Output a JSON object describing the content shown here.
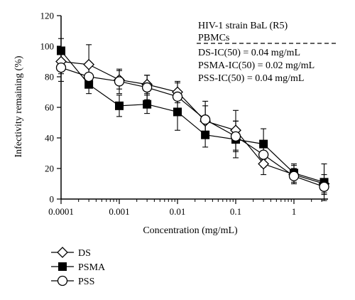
{
  "chart_data": {
    "type": "line",
    "xlabel": "Concentration (mg/mL)",
    "ylabel": "Infectivity remaining (%)",
    "x_scale": "log",
    "xlim": [
      0.0001,
      5
    ],
    "ylim": [
      0,
      120
    ],
    "x_ticks": [
      0.0001,
      0.001,
      0.01,
      0.1,
      1
    ],
    "x_tick_labels": [
      "0.0001",
      "0.001",
      "0.01",
      "0.1",
      "1"
    ],
    "y_ticks": [
      0,
      20,
      40,
      60,
      80,
      100,
      120
    ],
    "y_tick_labels": [
      "0",
      "20",
      "40",
      "60",
      "80",
      "100",
      "120"
    ],
    "grid": false,
    "legend_position": "bottom-left",
    "x": [
      0.0001,
      0.0003,
      0.001,
      0.003,
      0.01,
      0.03,
      0.1,
      0.3,
      1,
      3.3
    ],
    "series": [
      {
        "name": "DS",
        "marker": "diamond",
        "values": [
          90,
          88,
          78,
          75,
          70,
          51,
          45,
          23,
          16,
          10
        ],
        "errors": [
          8,
          13,
          6,
          6,
          7,
          10,
          13,
          7,
          6,
          6
        ]
      },
      {
        "name": "PSMA",
        "marker": "square",
        "values": [
          97,
          75,
          61,
          62,
          57,
          42,
          39,
          36,
          17,
          11
        ],
        "errors": [
          8,
          6,
          7,
          6,
          12,
          8,
          12,
          10,
          6,
          12
        ]
      },
      {
        "name": "PSS",
        "marker": "circle",
        "values": [
          86,
          80,
          77,
          73,
          67,
          52,
          41,
          29,
          15,
          8
        ],
        "errors": [
          9,
          7,
          8,
          8,
          9,
          12,
          10,
          8,
          5,
          5
        ]
      }
    ],
    "annotations": {
      "header_line1": "HIV-1 strain BaL (R5)",
      "header_line2": "PBMCs",
      "ic50_lines": [
        "DS-IC(50) = 0.04 mg/mL",
        "PSMA-IC(50) = 0.02 mg/mL",
        "PSS-IC(50) = 0.04 mg/mL"
      ]
    }
  }
}
